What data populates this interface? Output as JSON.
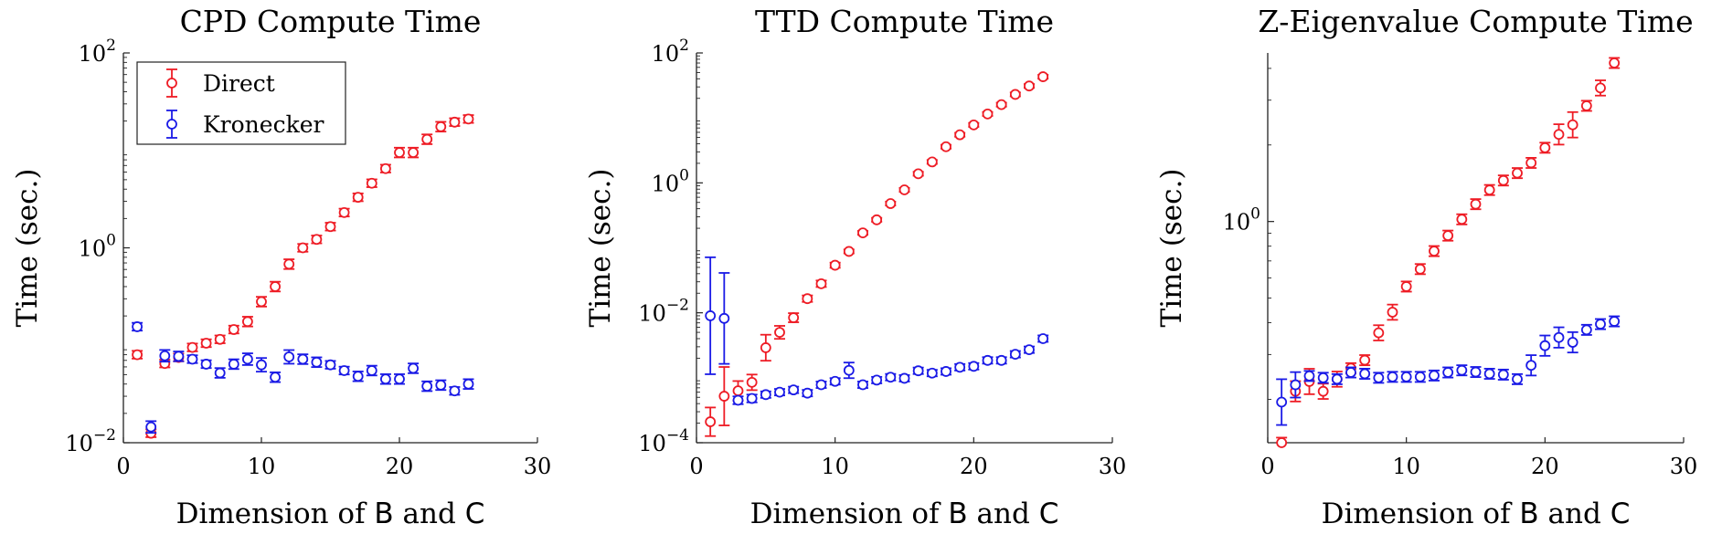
{
  "chart_data": [
    {
      "type": "scatter",
      "title": "CPD Compute Time",
      "xlabel_parts": [
        "Dimension of ",
        "B",
        " and ",
        "C"
      ],
      "ylabel": "Time (sec.)",
      "xlim": [
        0,
        30
      ],
      "xticks": [
        0,
        10,
        20,
        30
      ],
      "ylim": [
        0.01,
        100
      ],
      "yscale": "log",
      "yticks": [
        {
          "value": 0.01,
          "base": "10",
          "exp": "−2"
        },
        {
          "value": 1,
          "base": "10",
          "exp": "0"
        },
        {
          "value": 100,
          "base": "10",
          "exp": "2"
        }
      ],
      "legend": {
        "placement": "top-left",
        "entries": [
          "Direct",
          "Kronecker"
        ]
      },
      "series": [
        {
          "name": "Direct",
          "color": "#ee1c25",
          "x": [
            1,
            2,
            3,
            4,
            5,
            6,
            7,
            8,
            9,
            10,
            11,
            12,
            13,
            14,
            15,
            16,
            17,
            18,
            19,
            20,
            21,
            22,
            23,
            24,
            25
          ],
          "y": [
            0.08,
            0.0125,
            0.065,
            0.075,
            0.095,
            0.105,
            0.115,
            0.145,
            0.175,
            0.28,
            0.4,
            0.68,
            1.0,
            1.22,
            1.65,
            2.3,
            3.3,
            4.6,
            6.5,
            9.5,
            9.5,
            13.0,
            17.5,
            19.5,
            21.0
          ],
          "err": [
            0.04,
            0.04,
            0.04,
            0.04,
            0.04,
            0.04,
            0.04,
            0.04,
            0.05,
            0.05,
            0.05,
            0.05,
            0.04,
            0.04,
            0.04,
            0.04,
            0.04,
            0.04,
            0.04,
            0.05,
            0.05,
            0.05,
            0.05,
            0.04,
            0.04
          ]
        },
        {
          "name": "Kronecker",
          "color": "#1a1ae6",
          "x": [
            1,
            2,
            3,
            4,
            5,
            6,
            7,
            8,
            9,
            10,
            11,
            12,
            13,
            14,
            15,
            16,
            17,
            18,
            19,
            20,
            21,
            22,
            23,
            24,
            25
          ],
          "y": [
            0.155,
            0.0145,
            0.078,
            0.077,
            0.072,
            0.064,
            0.052,
            0.064,
            0.072,
            0.063,
            0.047,
            0.076,
            0.072,
            0.067,
            0.063,
            0.055,
            0.048,
            0.055,
            0.045,
            0.045,
            0.058,
            0.038,
            0.039,
            0.034,
            0.04
          ],
          "err": [
            0.04,
            0.06,
            0.06,
            0.05,
            0.04,
            0.04,
            0.05,
            0.05,
            0.06,
            0.07,
            0.05,
            0.07,
            0.05,
            0.05,
            0.04,
            0.04,
            0.05,
            0.05,
            0.05,
            0.05,
            0.05,
            0.05,
            0.05,
            0.04,
            0.05
          ]
        }
      ]
    },
    {
      "type": "scatter",
      "title": "TTD Compute Time",
      "xlabel_parts": [
        "Dimension of ",
        "B",
        " and ",
        "C"
      ],
      "ylabel": "Time (sec.)",
      "xlim": [
        0,
        30
      ],
      "xticks": [
        0,
        10,
        20,
        30
      ],
      "ylim": [
        0.0001,
        100
      ],
      "yscale": "log",
      "yticks": [
        {
          "value": 0.0001,
          "base": "10",
          "exp": "−4"
        },
        {
          "value": 0.01,
          "base": "10",
          "exp": "−2"
        },
        {
          "value": 1,
          "base": "10",
          "exp": "0"
        },
        {
          "value": 100,
          "base": "10",
          "exp": "2"
        }
      ],
      "series": [
        {
          "name": "Direct",
          "color": "#ee1c25",
          "x": [
            1,
            2,
            3,
            4,
            5,
            6,
            7,
            8,
            9,
            10,
            11,
            12,
            13,
            14,
            15,
            16,
            17,
            18,
            19,
            20,
            21,
            22,
            23,
            24,
            25
          ],
          "y": [
            0.00021,
            0.00052,
            0.00063,
            0.00085,
            0.0029,
            0.005,
            0.0084,
            0.0165,
            0.028,
            0.054,
            0.088,
            0.17,
            0.27,
            0.48,
            0.78,
            1.38,
            2.1,
            3.6,
            5.5,
            7.8,
            11.5,
            16.0,
            23.0,
            31.0,
            43.0
          ],
          "err": [
            0.22,
            0.45,
            0.15,
            0.12,
            0.2,
            0.1,
            0.07,
            0.05,
            0.05,
            0.04,
            0.03,
            0.03,
            0.03,
            0.03,
            0.03,
            0.03,
            0.03,
            0.03,
            0.03,
            0.03,
            0.03,
            0.03,
            0.03,
            0.03,
            0.03
          ]
        },
        {
          "name": "Kronecker",
          "color": "#1a1ae6",
          "x": [
            1,
            2,
            3,
            4,
            5,
            6,
            7,
            8,
            9,
            10,
            11,
            12,
            13,
            14,
            15,
            16,
            17,
            18,
            19,
            20,
            21,
            22,
            23,
            24,
            25
          ],
          "y": [
            0.009,
            0.0082,
            0.00045,
            0.00048,
            0.00055,
            0.0006,
            0.00065,
            0.00058,
            0.00078,
            0.00088,
            0.0013,
            0.00078,
            0.00092,
            0.00102,
            0.00098,
            0.00128,
            0.00118,
            0.00125,
            0.00145,
            0.0015,
            0.00185,
            0.00185,
            0.0023,
            0.0027,
            0.004
          ],
          "err": [
            0.9,
            0.7,
            0.06,
            0.06,
            0.05,
            0.05,
            0.05,
            0.05,
            0.05,
            0.05,
            0.12,
            0.05,
            0.05,
            0.05,
            0.05,
            0.05,
            0.05,
            0.05,
            0.05,
            0.05,
            0.05,
            0.05,
            0.05,
            0.05,
            0.05
          ]
        }
      ]
    },
    {
      "type": "scatter",
      "title": "Z-Eigenvalue Compute Time",
      "xlabel_parts": [
        "Dimension of ",
        "B",
        " and ",
        "C"
      ],
      "ylabel": "Time (sec.)",
      "xlim": [
        0,
        30
      ],
      "xticks": [
        0,
        10,
        20,
        30
      ],
      "ylim": [
        0.135,
        4.6
      ],
      "yscale": "log",
      "yticks": [
        {
          "value": 1,
          "base": "10",
          "exp": "0"
        }
      ],
      "series": [
        {
          "name": "Direct",
          "color": "#ee1c25",
          "x": [
            1,
            2,
            3,
            4,
            5,
            6,
            7,
            8,
            9,
            10,
            11,
            12,
            13,
            14,
            15,
            16,
            17,
            18,
            19,
            20,
            21,
            22,
            23,
            24,
            25
          ],
          "y": [
            0.135,
            0.215,
            0.235,
            0.215,
            0.24,
            0.265,
            0.285,
            0.365,
            0.44,
            0.555,
            0.65,
            0.765,
            0.88,
            1.02,
            1.17,
            1.33,
            1.45,
            1.55,
            1.7,
            1.95,
            2.2,
            2.4,
            2.85,
            3.35,
            4.2
          ],
          "err": [
            0.02,
            0.04,
            0.05,
            0.03,
            0.03,
            0.02,
            0.02,
            0.03,
            0.03,
            0.02,
            0.02,
            0.02,
            0.02,
            0.02,
            0.02,
            0.02,
            0.02,
            0.02,
            0.02,
            0.02,
            0.04,
            0.05,
            0.02,
            0.03,
            0.02
          ]
        },
        {
          "name": "Kronecker",
          "color": "#1a1ae6",
          "x": [
            1,
            2,
            3,
            4,
            5,
            6,
            7,
            8,
            9,
            10,
            11,
            12,
            13,
            14,
            15,
            16,
            17,
            18,
            19,
            20,
            21,
            22,
            23,
            24,
            25
          ],
          "y": [
            0.195,
            0.228,
            0.247,
            0.243,
            0.24,
            0.255,
            0.252,
            0.243,
            0.245,
            0.245,
            0.245,
            0.248,
            0.255,
            0.26,
            0.256,
            0.252,
            0.25,
            0.24,
            0.272,
            0.325,
            0.35,
            0.335,
            0.375,
            0.395,
            0.405
          ],
          "err": [
            0.09,
            0.05,
            0.02,
            0.02,
            0.02,
            0.02,
            0.02,
            0.02,
            0.02,
            0.02,
            0.02,
            0.02,
            0.02,
            0.02,
            0.02,
            0.02,
            0.02,
            0.02,
            0.04,
            0.04,
            0.04,
            0.04,
            0.02,
            0.02,
            0.02
          ]
        }
      ]
    }
  ]
}
